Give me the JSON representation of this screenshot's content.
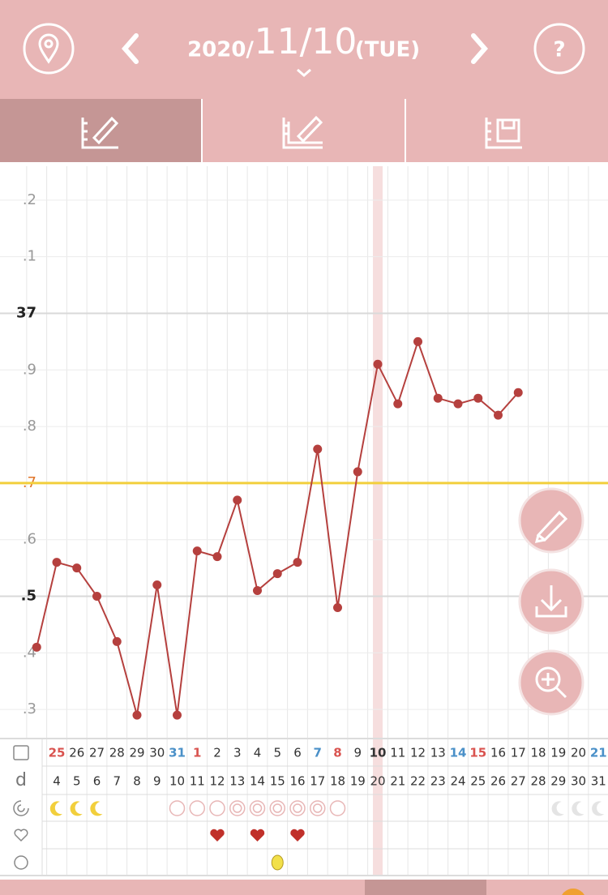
{
  "header": {
    "year": "2020/",
    "date": "11/10",
    "weekday": "(TUE)"
  },
  "chart_data": {
    "type": "line",
    "categories": [
      null,
      "25",
      "26",
      "27",
      "28",
      "29",
      "30",
      "31",
      "1",
      "2",
      "3",
      "4",
      "5",
      "6",
      "7",
      "8",
      "9",
      "10",
      "11",
      "12",
      "13",
      "14",
      "15",
      "16",
      "17",
      "18",
      "19",
      "20",
      "21"
    ],
    "category_colors": [
      null,
      "#d9534f",
      "#333333",
      "#333333",
      "#333333",
      "#333333",
      "#333333",
      "#4a90c8",
      "#d9534f",
      "#333333",
      "#333333",
      "#333333",
      "#333333",
      "#333333",
      "#4a90c8",
      "#d9534f",
      "#333333",
      "#333333",
      "#333333",
      "#333333",
      "#333333",
      "#4a90c8",
      "#d9534f",
      "#333333",
      "#333333",
      "#333333",
      "#333333",
      "#333333",
      "#4a90c8"
    ],
    "row_label": "d",
    "cycle_days": [
      null,
      "4",
      "5",
      "6",
      "7",
      "8",
      "9",
      "10",
      "11",
      "12",
      "13",
      "14",
      "15",
      "16",
      "17",
      "18",
      "19",
      "20",
      "21",
      "22",
      "23",
      "24",
      "25",
      "26",
      "27",
      "28",
      "29",
      "30",
      "31"
    ],
    "values": [
      36.41,
      36.56,
      36.55,
      36.5,
      36.42,
      36.29,
      36.52,
      36.29,
      36.58,
      36.57,
      36.67,
      36.51,
      36.54,
      36.56,
      36.76,
      36.48,
      36.72,
      36.91,
      36.84,
      36.95,
      36.85,
      36.84,
      36.85,
      36.82,
      36.86,
      null,
      null,
      null,
      null
    ],
    "color": "#b5403e",
    "ylim": [
      36.25,
      37.26
    ],
    "yticks": [
      {
        "value": 36.3,
        "label": ".3"
      },
      {
        "value": 36.4,
        "label": ".4"
      },
      {
        "value": 36.5,
        "label": ".5"
      },
      {
        "value": 36.6,
        "label": ".6"
      },
      {
        "value": 36.7,
        "label": ".7"
      },
      {
        "value": 36.8,
        "label": ".8"
      },
      {
        "value": 36.9,
        "label": ".9"
      },
      37,
      {
        "value": 37.1,
        "label": ".1"
      },
      {
        "value": 37.2,
        "label": ".2"
      }
    ],
    "coverline": 36.7,
    "coverline_color": "#f2cf3c",
    "selected_index": 17,
    "grid": true
  }
}
